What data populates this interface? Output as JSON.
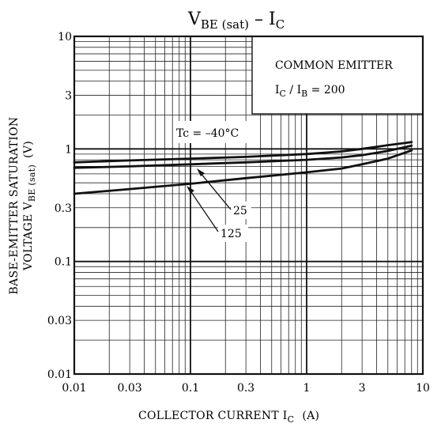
{
  "chart_data": {
    "type": "line",
    "title_main": "V",
    "title_sub": "BE (sat)",
    "title_mid": " – I",
    "title_sub2": "C",
    "xlabel": "COLLECTOR CURRENT  I",
    "xlabel_sub": "C",
    "xlabel_unit": "(A)",
    "ylabel_line1": "BASE-EMITTER SATURATION",
    "ylabel_line2_a": "VOLTAGE   V",
    "ylabel_line2_sub": "BE (sat)",
    "ylabel_line2_b": "(V)",
    "x_scale": "log",
    "y_scale": "log",
    "xlim": [
      0.01,
      10
    ],
    "ylim": [
      0.01,
      10
    ],
    "x_ticks": [
      0.01,
      0.03,
      0.1,
      0.3,
      1,
      3,
      10
    ],
    "x_tick_labels": [
      "0.01",
      "0.03",
      "0.1",
      "0.3",
      "1",
      "3",
      "10"
    ],
    "y_ticks": [
      0.01,
      0.03,
      0.1,
      0.3,
      1,
      3,
      10
    ],
    "y_tick_labels": [
      "0.01",
      "0.03",
      "0.1",
      "0.3",
      "1",
      "3",
      "10"
    ],
    "grid": true,
    "legend_box": {
      "line1": "COMMON EMITTER",
      "line2_a": "I",
      "line2_sub1": "C",
      "line2_b": " / I",
      "line2_sub2": "B",
      "line2_c": " = 200"
    },
    "series": [
      {
        "name": "Tc = –40°C",
        "x": [
          0.01,
          0.03,
          0.1,
          0.3,
          1,
          2,
          3,
          5,
          8
        ],
        "y": [
          0.76,
          0.79,
          0.82,
          0.85,
          0.9,
          0.95,
          1.0,
          1.08,
          1.15
        ]
      },
      {
        "name": "25",
        "x": [
          0.01,
          0.03,
          0.1,
          0.3,
          1,
          2,
          3,
          5,
          8
        ],
        "y": [
          0.68,
          0.7,
          0.73,
          0.76,
          0.8,
          0.84,
          0.88,
          0.96,
          1.07
        ]
      },
      {
        "name": "125",
        "x": [
          0.01,
          0.03,
          0.1,
          0.3,
          1,
          2,
          3,
          5,
          8
        ],
        "y": [
          0.4,
          0.44,
          0.49,
          0.55,
          0.62,
          0.67,
          0.73,
          0.82,
          0.97
        ]
      }
    ],
    "annotations": {
      "tc_label": "Tc = –40°C",
      "label_25": "25",
      "label_125": "125"
    }
  }
}
